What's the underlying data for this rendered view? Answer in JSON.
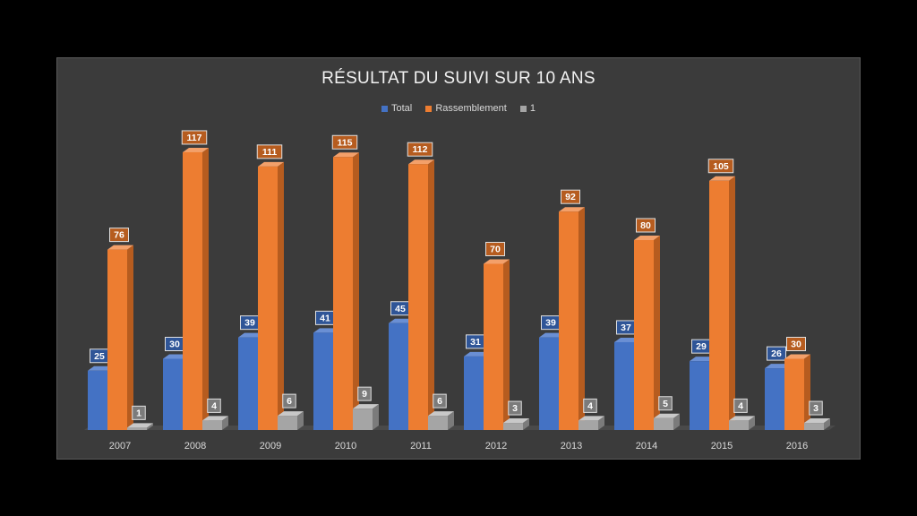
{
  "chart_data": {
    "type": "bar",
    "title": "RÉSULTAT DU SUIVI SUR 10 ANS",
    "categories": [
      "2007",
      "2008",
      "2009",
      "2010",
      "2011",
      "2012",
      "2013",
      "2014",
      "2015",
      "2016"
    ],
    "series": [
      {
        "name": "Total",
        "color": "#4472c4",
        "side": "#2f5597",
        "top": "#6a8fd4",
        "values": [
          25,
          30,
          39,
          41,
          45,
          31,
          39,
          37,
          29,
          26
        ]
      },
      {
        "name": "Rassemblement",
        "color": "#ed7d31",
        "side": "#b65c1f",
        "top": "#f3a06a",
        "values": [
          76,
          117,
          111,
          115,
          112,
          70,
          92,
          80,
          105,
          30
        ]
      },
      {
        "name": "1",
        "color": "#a5a5a5",
        "side": "#7b7b7b",
        "top": "#c8c8c8",
        "values": [
          1,
          4,
          6,
          9,
          6,
          3,
          4,
          5,
          4,
          3
        ]
      }
    ],
    "legend_position": "top",
    "data_labels": true,
    "grid": false
  }
}
